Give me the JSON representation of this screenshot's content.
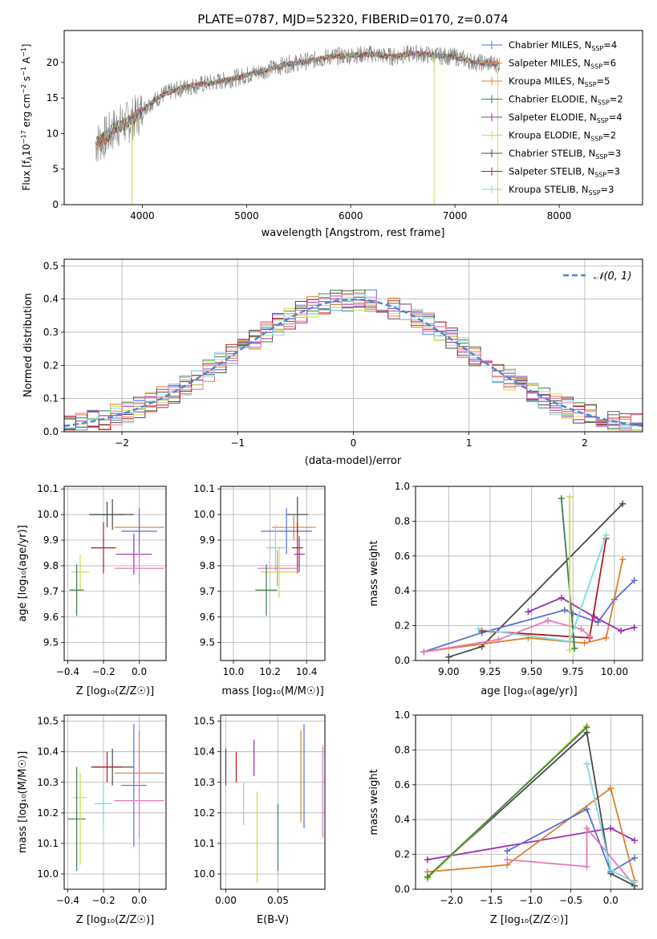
{
  "figure_title": "PLATE=0787, MJD=52320, FIBERID=0170, z=0.074",
  "chart_data": [
    {
      "type": "line",
      "id": "spectrum",
      "xlabel": "wavelength [Angstrom, rest frame]",
      "ylabel_parts": {
        "a": "Flux [f",
        "b": "λ",
        "c": "10",
        "d": "−17",
        "e": " erg cm",
        "f": "−2",
        "g": " s",
        "h": "−1",
        "i": " A",
        "j": "−1",
        "k": "]"
      },
      "xlim": [
        3250,
        8800
      ],
      "ylim": [
        0,
        24.5
      ],
      "xticks": [
        4000,
        5000,
        6000,
        7000,
        8000
      ],
      "yticks": [
        0,
        5,
        10,
        15,
        20
      ],
      "legend_position": "right",
      "legend": [
        {
          "name": "Chabrier MILES, N",
          "sub": "SSP",
          "tail": "=4",
          "color": "#5a6fd6"
        },
        {
          "name": "Salpeter MILES, N",
          "sub": "SSP",
          "tail": "=6",
          "color": "#e8744c"
        },
        {
          "name": "Kroupa MILES, N",
          "sub": "SSP",
          "tail": "=5",
          "color": "#e07f2a"
        },
        {
          "name": "Chabrier ELODIE, N",
          "sub": "SSP",
          "tail": "=2",
          "color": "#3f7f4a"
        },
        {
          "name": "Salpeter ELODIE, N",
          "sub": "SSP",
          "tail": "=4",
          "color": "#9b2fb0"
        },
        {
          "name": "Kroupa ELODIE, N",
          "sub": "SSP",
          "tail": "=2",
          "color": "#c8de4a"
        },
        {
          "name": "Chabrier STELIB, N",
          "sub": "SSP",
          "tail": "=3",
          "color": "#4a4a4a"
        },
        {
          "name": "Salpeter STELIB, N",
          "sub": "SSP",
          "tail": "=3",
          "color": "#b01d1d"
        },
        {
          "name": "Kroupa STELIB, N",
          "sub": "SSP",
          "tail": "=3",
          "color": "#7fd8e0"
        }
      ],
      "data_color": "#808080",
      "model_color": "#7fd8e0",
      "continuum": [
        [
          3550,
          8.5
        ],
        [
          3650,
          9.5
        ],
        [
          3750,
          11.0
        ],
        [
          3850,
          11.5
        ],
        [
          3950,
          12.5
        ],
        [
          4050,
          14.0
        ],
        [
          4200,
          15.5
        ],
        [
          4400,
          16.5
        ],
        [
          4600,
          17.0
        ],
        [
          4800,
          17.5
        ],
        [
          5000,
          18.2
        ],
        [
          5200,
          19.0
        ],
        [
          5400,
          19.8
        ],
        [
          5600,
          20.2
        ],
        [
          5800,
          20.8
        ],
        [
          6000,
          21.0
        ],
        [
          6200,
          21.2
        ],
        [
          6400,
          20.8
        ],
        [
          6600,
          21.3
        ],
        [
          6800,
          21.0
        ],
        [
          7000,
          20.8
        ],
        [
          7200,
          20.0
        ],
        [
          7400,
          19.8
        ]
      ],
      "drops": [
        [
          3900,
          3900,
          0
        ],
        [
          6800,
          6800,
          0
        ],
        [
          7410,
          7410,
          0
        ]
      ]
    },
    {
      "type": "histogram",
      "id": "residuals",
      "xlabel": "(data-model)/error",
      "ylabel": "Normed distribution",
      "xlim": [
        -2.5,
        2.5
      ],
      "ylim": [
        0,
        0.52
      ],
      "xticks": [
        -2,
        -1,
        0,
        1,
        2
      ],
      "xtick_labels": [
        "−2",
        "−1",
        "0",
        "1",
        "2"
      ],
      "yticks": [
        0.0,
        0.1,
        0.2,
        0.3,
        0.4,
        0.5
      ],
      "ytick_labels": [
        "0.0",
        "0.1",
        "0.2",
        "0.3",
        "0.4",
        "0.5"
      ],
      "legend_label": "𝒩(0, 1)",
      "legend_position": "top-right",
      "normal_color": "#4f86d9",
      "bin_width": 0.1,
      "series_colors": [
        "#5a6fd6",
        "#e8744c",
        "#e07f2a",
        "#3f7f4a",
        "#9b2fb0",
        "#c8de4a",
        "#4a4a4a",
        "#b01d1d",
        "#7fd8e0",
        "#e37ab6"
      ]
    },
    {
      "type": "scatter",
      "id": "age-vs-Z",
      "xlabel": "Z [log₁₀(Z/Z☉)]",
      "ylabel": "age  [log₁₀(age/yr)]",
      "xlim": [
        -0.42,
        0.15
      ],
      "ylim": [
        9.43,
        10.11
      ],
      "xticks": [
        -0.4,
        -0.2,
        0.0
      ],
      "xtick_labels": [
        "−0.4",
        "−0.2",
        "0.0"
      ],
      "yticks": [
        9.5,
        9.6,
        9.7,
        9.8,
        9.9,
        10.0,
        10.1
      ],
      "ytick_labels": [
        "9.5",
        "9.6",
        "9.7",
        "9.8",
        "9.9",
        "10.0",
        "10.1"
      ],
      "points": [
        {
          "x": -0.15,
          "y": 10.0,
          "xerr": 0.12,
          "yerr": 0.06,
          "color": "#4a4a4a"
        },
        {
          "x": -0.18,
          "y": 10.0,
          "xerr": 0.1,
          "yerr": 0.05,
          "color": "#4a4a4a"
        },
        {
          "x": 0.0,
          "y": 9.95,
          "xerr": 0.14,
          "yerr": 0.05,
          "color": "#e07f2a"
        },
        {
          "x": 0.0,
          "y": 9.935,
          "xerr": 0.1,
          "yerr": 0.09,
          "color": "#5a6fd6"
        },
        {
          "x": -0.2,
          "y": 9.87,
          "xerr": 0.07,
          "yerr": 0.1,
          "color": "#b01d1d"
        },
        {
          "x": -0.03,
          "y": 9.845,
          "xerr": 0.1,
          "yerr": 0.08,
          "color": "#9b2fb0"
        },
        {
          "x": 0.0,
          "y": 9.79,
          "xerr": 0.14,
          "yerr": 0.06,
          "color": "#e37ab6"
        },
        {
          "x": -0.33,
          "y": 9.775,
          "xerr": 0.05,
          "yerr": 0.07,
          "color": "#c8de4a"
        },
        {
          "x": -0.35,
          "y": 9.705,
          "xerr": 0.04,
          "yerr": 0.1,
          "color": "#3f7f4a"
        }
      ]
    },
    {
      "type": "scatter",
      "id": "age-vs-mass",
      "xlabel": "mass [log₁₀(M/M☉)]",
      "xlim": [
        9.93,
        10.5
      ],
      "ylim": [
        9.43,
        10.11
      ],
      "xticks": [
        10.0,
        10.2,
        10.4
      ],
      "xtick_labels": [
        "10.0",
        "10.2",
        "10.4"
      ],
      "yticks": [
        9.5,
        9.6,
        9.7,
        9.8,
        9.9,
        10.0,
        10.1
      ],
      "ytick_labels": [
        "9.5",
        "9.6",
        "9.7",
        "9.8",
        "9.9",
        "10.0",
        "10.1"
      ],
      "points": [
        {
          "x": 10.35,
          "y": 10.0,
          "xerr": 0.06,
          "yerr": 0.07,
          "color": "#4a4a4a"
        },
        {
          "x": 10.33,
          "y": 9.95,
          "xerr": 0.12,
          "yerr": 0.05,
          "color": "#e07f2a"
        },
        {
          "x": 10.29,
          "y": 9.935,
          "xerr": 0.14,
          "yerr": 0.09,
          "color": "#5a6fd6"
        },
        {
          "x": 10.35,
          "y": 9.87,
          "xerr": 0.03,
          "yerr": 0.1,
          "color": "#b01d1d"
        },
        {
          "x": 10.23,
          "y": 9.87,
          "xerr": 0.05,
          "yerr": 0.09,
          "color": "#7fd8e0"
        },
        {
          "x": 10.36,
          "y": 9.845,
          "xerr": 0.03,
          "yerr": 0.07,
          "color": "#9b2fb0"
        },
        {
          "x": 10.24,
          "y": 9.79,
          "xerr": 0.11,
          "yerr": 0.07,
          "color": "#e37ab6"
        },
        {
          "x": 10.25,
          "y": 9.775,
          "xerr": 0.1,
          "yerr": 0.1,
          "color": "#c8de4a"
        },
        {
          "x": 10.18,
          "y": 9.705,
          "xerr": 0.06,
          "yerr": 0.1,
          "color": "#3f7f4a"
        }
      ]
    },
    {
      "type": "line",
      "id": "mass-weight-vs-age",
      "xlabel": "age  [log₁₀(age/yr)]",
      "ylabel": "mass weight",
      "xlim": [
        8.8,
        10.17
      ],
      "ylim": [
        0.0,
        1.0
      ],
      "xticks": [
        9.0,
        9.25,
        9.5,
        9.75,
        10.0
      ],
      "xtick_labels": [
        "9.00",
        "9.25",
        "9.50",
        "9.75",
        "10.00"
      ],
      "yticks": [
        0.0,
        0.2,
        0.4,
        0.6,
        0.8,
        1.0
      ],
      "ytick_labels": [
        "0.0",
        "0.2",
        "0.4",
        "0.6",
        "0.8",
        "1.0"
      ],
      "series": [
        {
          "color": "#4a4a4a",
          "points": [
            [
              9.0,
              0.02
            ],
            [
              9.2,
              0.08
            ],
            [
              10.05,
              0.9
            ]
          ]
        },
        {
          "color": "#5a6fd6",
          "points": [
            [
              8.85,
              0.05
            ],
            [
              9.2,
              0.16
            ],
            [
              9.7,
              0.29
            ],
            [
              9.75,
              0.27
            ],
            [
              9.9,
              0.22
            ],
            [
              10.0,
              0.35
            ],
            [
              10.12,
              0.46
            ]
          ]
        },
        {
          "color": "#e07f2a",
          "points": [
            [
              8.85,
              0.05
            ],
            [
              9.48,
              0.13
            ],
            [
              9.82,
              0.1
            ],
            [
              9.95,
              0.13
            ],
            [
              10.05,
              0.58
            ]
          ]
        },
        {
          "color": "#b01d1d",
          "points": [
            [
              9.2,
              0.17
            ],
            [
              9.85,
              0.13
            ],
            [
              9.95,
              0.7
            ]
          ]
        },
        {
          "color": "#9b2fb0",
          "points": [
            [
              9.48,
              0.28
            ],
            [
              9.68,
              0.36
            ],
            [
              9.88,
              0.25
            ],
            [
              10.04,
              0.17
            ],
            [
              10.12,
              0.19
            ]
          ]
        },
        {
          "color": "#e37ab6",
          "points": [
            [
              8.85,
              0.05
            ],
            [
              9.3,
              0.12
            ],
            [
              9.6,
              0.23
            ],
            [
              9.8,
              0.18
            ],
            [
              9.85,
              0.14
            ]
          ]
        },
        {
          "color": "#3f7f4a",
          "points": [
            [
              9.68,
              0.93
            ],
            [
              9.76,
              0.07
            ]
          ]
        },
        {
          "color": "#c8de4a",
          "points": [
            [
              9.73,
              0.94
            ],
            [
              9.73,
              0.06
            ]
          ]
        },
        {
          "color": "#7fd8e0",
          "points": [
            [
              9.18,
              0.18
            ],
            [
              9.73,
              0.11
            ],
            [
              9.95,
              0.72
            ]
          ]
        }
      ]
    },
    {
      "type": "scatter",
      "id": "mass-vs-Z",
      "xlabel": "Z [log₁₀(Z/Z☉)]",
      "ylabel": "mass [log₁₀(M/M☉)]",
      "xlim": [
        -0.42,
        0.15
      ],
      "ylim": [
        9.95,
        10.52
      ],
      "xticks": [
        -0.4,
        -0.2,
        0.0
      ],
      "xtick_labels": [
        "−0.4",
        "−0.2",
        "0.0"
      ],
      "yticks": [
        10.0,
        10.1,
        10.2,
        10.3,
        10.4,
        10.5
      ],
      "ytick_labels": [
        "10.0",
        "10.1",
        "10.2",
        "10.3",
        "10.4",
        "10.5"
      ],
      "points": [
        {
          "x": -0.15,
          "y": 10.35,
          "xerr": 0.12,
          "yerr": 0.06,
          "color": "#4a4a4a"
        },
        {
          "x": -0.18,
          "y": 10.35,
          "xerr": 0.08,
          "yerr": 0.05,
          "color": "#b01d1d"
        },
        {
          "x": 0.0,
          "y": 10.33,
          "xerr": 0.14,
          "yerr": 0.14,
          "color": "#e07f2a"
        },
        {
          "x": -0.03,
          "y": 10.29,
          "xerr": 0.07,
          "yerr": 0.2,
          "color": "#5a6fd6"
        },
        {
          "x": 0.0,
          "y": 10.24,
          "xerr": 0.14,
          "yerr": 0.12,
          "color": "#e37ab6"
        },
        {
          "x": -0.2,
          "y": 10.23,
          "xerr": 0.05,
          "yerr": 0.07,
          "color": "#7fd8e0"
        },
        {
          "x": -0.33,
          "y": 10.25,
          "xerr": 0.04,
          "yerr": 0.03,
          "color": "#c8de4a"
        },
        {
          "x": -0.35,
          "y": 10.18,
          "xerr": 0.05,
          "yerr": 0.17,
          "color": "#3f7f4a"
        },
        {
          "x": -0.33,
          "y": 10.18,
          "xerr": 0.0,
          "yerr": 0.15,
          "color": "#c8de4a"
        }
      ]
    },
    {
      "type": "scatter",
      "id": "mass-vs-ebv",
      "xlabel": "E(B-V)",
      "xlim": [
        -0.005,
        0.095
      ],
      "ylim": [
        9.95,
        10.52
      ],
      "xticks": [
        0.0,
        0.05
      ],
      "xtick_labels": [
        "0.00",
        "0.05"
      ],
      "yticks": [
        10.0,
        10.1,
        10.2,
        10.3,
        10.4,
        10.5
      ],
      "ytick_labels": [
        "10.0",
        "10.1",
        "10.2",
        "10.3",
        "10.4",
        "10.5"
      ],
      "points": [
        {
          "x": 0.0,
          "y": 10.35,
          "xerr": 0,
          "yerr": 0.06,
          "color": "#4a4a4a"
        },
        {
          "x": 0.01,
          "y": 10.35,
          "xerr": 0,
          "yerr": 0.05,
          "color": "#b01d1d"
        },
        {
          "x": 0.017,
          "y": 10.23,
          "xerr": 0,
          "yerr": 0.07,
          "color": "#7fd8e0"
        },
        {
          "x": 0.027,
          "y": 10.38,
          "xerr": 0,
          "yerr": 0.06,
          "color": "#9b2fb0"
        },
        {
          "x": 0.03,
          "y": 10.12,
          "xerr": 0,
          "yerr": 0.15,
          "color": "#c8de4a"
        },
        {
          "x": 0.05,
          "y": 10.12,
          "xerr": 0,
          "yerr": 0.11,
          "color": "#3f7f4a"
        },
        {
          "x": 0.072,
          "y": 10.32,
          "xerr": 0,
          "yerr": 0.15,
          "color": "#e07f2a"
        },
        {
          "x": 0.075,
          "y": 10.32,
          "xerr": 0,
          "yerr": 0.17,
          "color": "#5a6fd6"
        },
        {
          "x": 0.093,
          "y": 10.27,
          "xerr": 0,
          "yerr": 0.15,
          "color": "#e37ab6"
        }
      ]
    },
    {
      "type": "line",
      "id": "mass-weight-vs-Z",
      "xlabel": "Z [log₁₀(Z/Z☉)]",
      "ylabel": "mass weight",
      "xlim": [
        -2.45,
        0.4
      ],
      "ylim": [
        0.0,
        1.0
      ],
      "xticks": [
        -2.0,
        -1.5,
        -1.0,
        -0.5,
        0.0
      ],
      "xtick_labels": [
        "−2.0",
        "−1.5",
        "−1.0",
        "−0.5",
        "0.0"
      ],
      "yticks": [
        0.0,
        0.2,
        0.4,
        0.6,
        0.8,
        1.0
      ],
      "ytick_labels": [
        "0.0",
        "0.2",
        "0.4",
        "0.6",
        "0.8",
        "1.0"
      ],
      "series": [
        {
          "color": "#9b2fb0",
          "points": [
            [
              -2.3,
              0.17
            ],
            [
              0.0,
              0.35
            ],
            [
              0.3,
              0.28
            ]
          ]
        },
        {
          "color": "#e07f2a",
          "points": [
            [
              -2.3,
              0.1
            ],
            [
              -1.3,
              0.14
            ],
            [
              0.0,
              0.58
            ],
            [
              0.3,
              0.05
            ]
          ]
        },
        {
          "color": "#5a6fd6",
          "points": [
            [
              -1.3,
              0.22
            ],
            [
              -0.3,
              0.46
            ],
            [
              0.0,
              0.1
            ],
            [
              0.3,
              0.18
            ]
          ]
        },
        {
          "color": "#e37ab6",
          "points": [
            [
              -1.3,
              0.17
            ],
            [
              -0.3,
              0.13
            ],
            [
              -0.3,
              0.35
            ],
            [
              0.3,
              0.02
            ]
          ]
        },
        {
          "color": "#4a4a4a",
          "points": [
            [
              -2.3,
              0.07
            ],
            [
              -0.3,
              0.9
            ],
            [
              0.0,
              0.09
            ],
            [
              0.3,
              0.02
            ]
          ]
        },
        {
          "color": "#c8de4a",
          "points": [
            [
              -2.3,
              0.06
            ],
            [
              -0.3,
              0.94
            ]
          ]
        },
        {
          "color": "#3f7f4a",
          "points": [
            [
              -2.3,
              0.07
            ],
            [
              -0.3,
              0.93
            ]
          ]
        },
        {
          "color": "#7fd8e0",
          "points": [
            [
              -0.3,
              0.72
            ],
            [
              0.0,
              0.11
            ],
            [
              0.3,
              0.04
            ]
          ]
        }
      ]
    }
  ]
}
